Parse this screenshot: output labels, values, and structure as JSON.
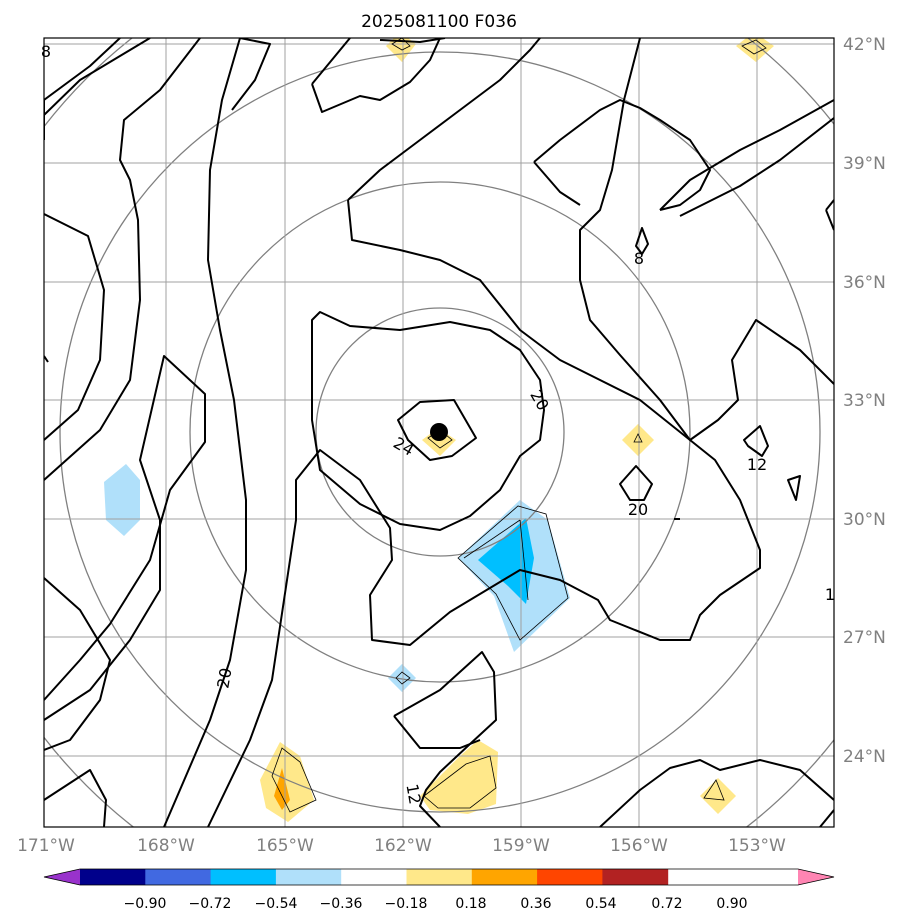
{
  "title": "2025081100 F036",
  "lat_labels": [
    "42°N",
    "39°N",
    "36°N",
    "33°N",
    "30°N",
    "27°N",
    "24°N"
  ],
  "lon_labels": [
    "171°W",
    "168°W",
    "165°W",
    "162°W",
    "159°W",
    "156°W",
    "153°W"
  ],
  "contour_labels": [
    "20",
    "24",
    "20",
    "12",
    "8",
    "20",
    "12",
    "8",
    "1"
  ],
  "colorbar": {
    "tick_labels": [
      "−0.90",
      "−0.72",
      "−0.54",
      "−0.36",
      "−0.18",
      "0.18",
      "0.36",
      "0.54",
      "0.72",
      "0.90"
    ],
    "colors": [
      "#9932cc",
      "#00008b",
      "#4169e1",
      "#00bfff",
      "#b0e0fa",
      "#ffffff",
      "#ffe88a",
      "#ffa500",
      "#ff4500",
      "#b22222",
      "#ff85b3"
    ]
  },
  "marker": "storm-center"
}
